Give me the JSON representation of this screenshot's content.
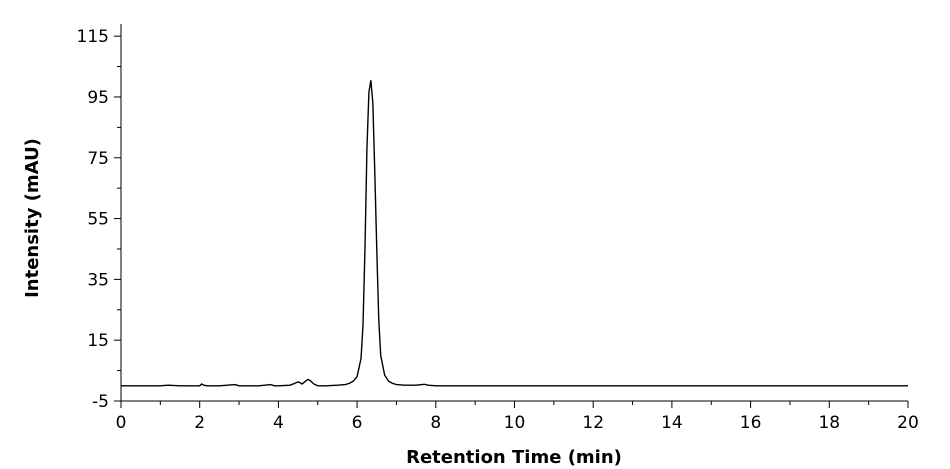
{
  "chart_data": {
    "type": "line",
    "title": "",
    "xlabel": "Retention Time (min)",
    "ylabel": "Intensity (mAU)",
    "xlim": [
      0,
      20
    ],
    "ylim": [
      -5,
      120
    ],
    "x_ticks": [
      0,
      2,
      4,
      6,
      8,
      10,
      12,
      14,
      16,
      18,
      20
    ],
    "y_ticks": [
      -5,
      15,
      35,
      55,
      75,
      95,
      115
    ],
    "grid": false,
    "legend": "none",
    "line_color": "#000000",
    "series": [
      {
        "x": [
          0,
          0.5,
          1.0,
          1.2,
          1.5,
          2.0,
          2.05,
          2.1,
          2.2,
          2.5,
          2.9,
          2.95,
          3.0,
          3.1,
          3.5,
          3.8,
          3.85,
          3.9,
          4.0,
          4.3,
          4.45,
          4.5,
          4.55,
          4.6,
          4.7,
          4.75,
          4.8,
          4.85,
          4.9,
          5.0,
          5.2,
          5.5,
          5.7,
          5.8,
          5.9,
          6.0,
          6.1,
          6.15,
          6.2,
          6.25,
          6.3,
          6.35,
          6.4,
          6.45,
          6.5,
          6.55,
          6.6,
          6.7,
          6.8,
          6.9,
          7.0,
          7.2,
          7.5,
          7.7,
          7.75,
          7.8,
          8.0,
          10,
          12,
          14,
          16,
          18,
          20
        ],
        "y": [
          0,
          0,
          0,
          0.2,
          0,
          0,
          0.6,
          0.2,
          0,
          0,
          0.4,
          0.2,
          0,
          0,
          0,
          0.4,
          0.2,
          0,
          0,
          0.2,
          1.0,
          1.3,
          1.0,
          0.6,
          1.6,
          2.1,
          1.8,
          1.2,
          0.6,
          0,
          0,
          0.2,
          0.4,
          0.8,
          1.5,
          3.0,
          9,
          20,
          45,
          78,
          96.5,
          100.5,
          93,
          70,
          45,
          22,
          10,
          3.5,
          1.5,
          0.8,
          0.4,
          0.2,
          0.2,
          0.5,
          0.4,
          0.2,
          0,
          0,
          0,
          0,
          0,
          0,
          0
        ]
      }
    ]
  }
}
